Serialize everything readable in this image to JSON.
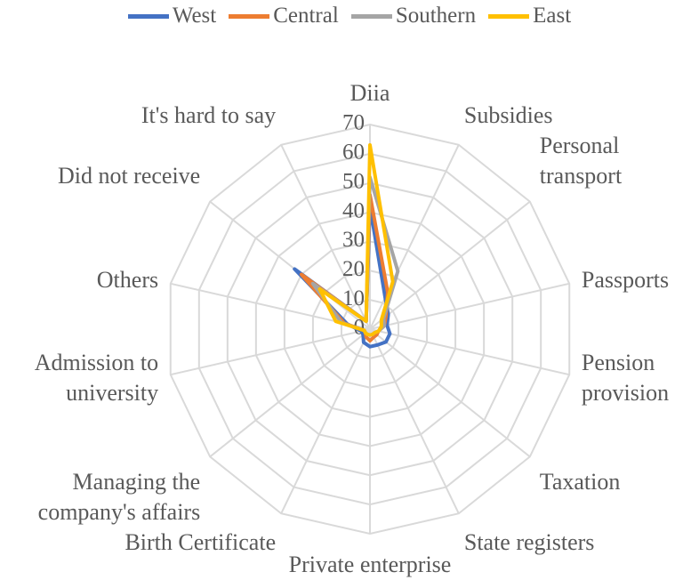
{
  "chart_data": {
    "type": "radar",
    "categories": [
      "Diia",
      "Subsidies",
      "Personal transport",
      "Passports",
      "Pension provision",
      "Taxation",
      "State registers",
      "Private enterprise",
      "Birth Certificate",
      "Managing the company's affairs",
      "Admission to university",
      "Others",
      "Did not receive",
      "It's hard to say"
    ],
    "series": [
      {
        "name": "West",
        "color": "#4472c4",
        "values": [
          42,
          12,
          8,
          6,
          7,
          7,
          6,
          6,
          5,
          3,
          3,
          8,
          33,
          3
        ]
      },
      {
        "name": "Central",
        "color": "#ed7d31",
        "values": [
          46,
          14,
          7,
          5,
          3,
          3,
          3,
          4,
          3,
          2,
          2,
          9,
          30,
          3
        ]
      },
      {
        "name": "Southern",
        "color": "#a5a5a5",
        "values": [
          52,
          22,
          6,
          5,
          3,
          2,
          2,
          2,
          2,
          2,
          2,
          10,
          25,
          3
        ]
      },
      {
        "name": "East",
        "color": "#ffc000",
        "values": [
          63,
          18,
          5,
          4,
          3,
          2,
          2,
          2,
          2,
          2,
          2,
          12,
          22,
          3
        ]
      }
    ],
    "rlim": [
      0,
      70
    ],
    "rticks": [
      0,
      10,
      20,
      30,
      40,
      50,
      60,
      70
    ],
    "grid": true,
    "legend": "top"
  }
}
